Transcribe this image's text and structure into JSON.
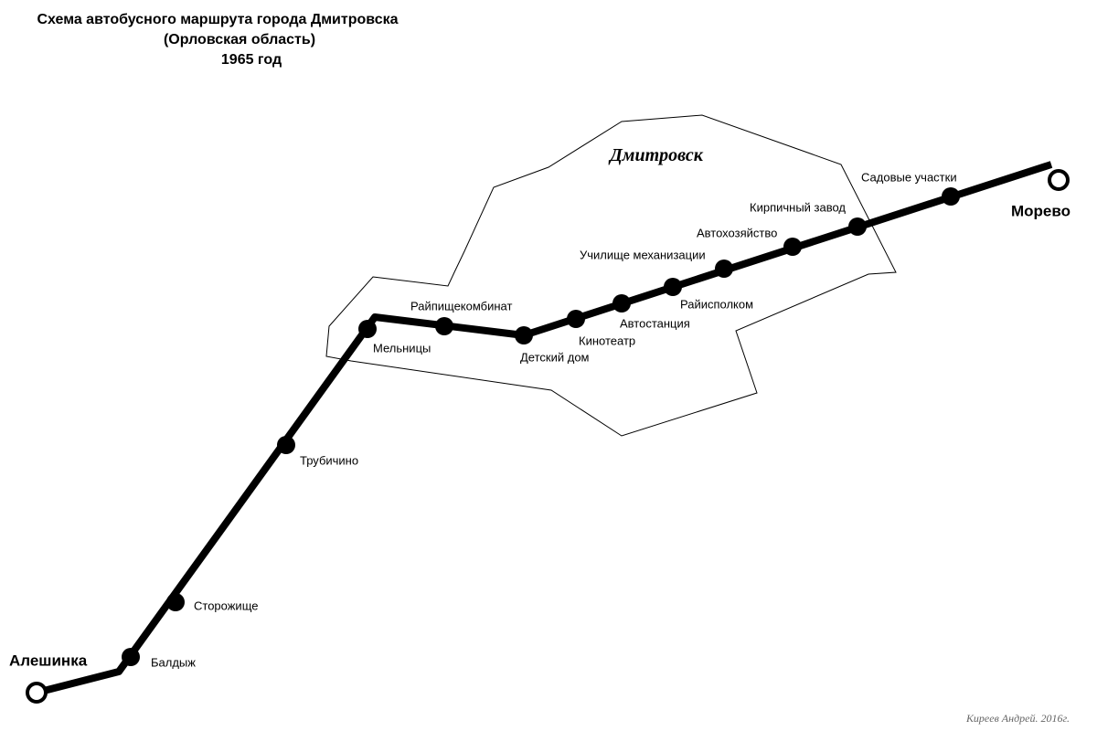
{
  "title": [
    "Схема автобусного маршрута города Дмитровска",
    "(Орловская область)",
    "1965 год"
  ],
  "city": "Дмитровск",
  "termini": [
    {
      "label": "Алешинка"
    },
    {
      "label": "Морево"
    }
  ],
  "stops": [
    {
      "label": "Балдыж"
    },
    {
      "label": "Сторожище"
    },
    {
      "label": "Трубичино"
    },
    {
      "label": "Мельницы"
    },
    {
      "label": "Райпищекомбинат"
    },
    {
      "label": "Детский дом"
    },
    {
      "label": "Кинотеатр"
    },
    {
      "label": "Автостанция"
    },
    {
      "label": "Райисполком"
    },
    {
      "label": "Училище механизации"
    },
    {
      "label": "Автохозяйство"
    },
    {
      "label": "Кирпичный завод"
    },
    {
      "label": "Садовые участки"
    }
  ],
  "credit": "Киреев Андрей. 2016г."
}
